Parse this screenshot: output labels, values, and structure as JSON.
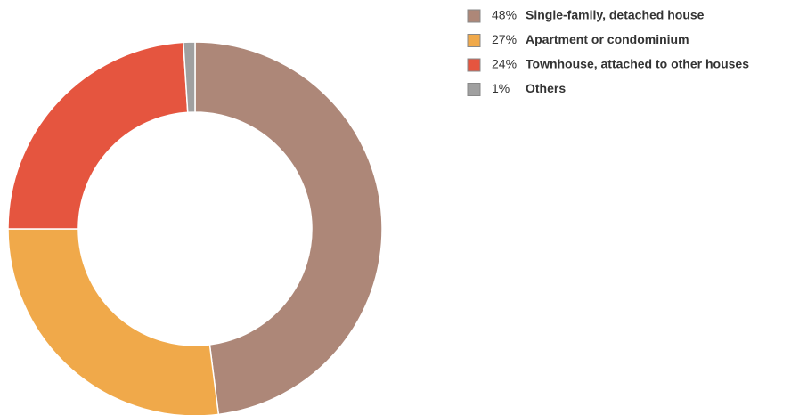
{
  "chart_data": {
    "type": "pie",
    "donut": true,
    "categories": [
      "Single-family, detached house",
      "Apartment or condominium",
      "Townhouse, attached to other houses",
      "Others"
    ],
    "values": [
      48,
      27,
      24,
      1
    ],
    "value_labels": [
      "48%",
      "27%",
      "24%",
      "1%"
    ],
    "colors": [
      "#ad8778",
      "#f0a94a",
      "#e5553f",
      "#a0a0a0"
    ],
    "legend": "top-right"
  }
}
